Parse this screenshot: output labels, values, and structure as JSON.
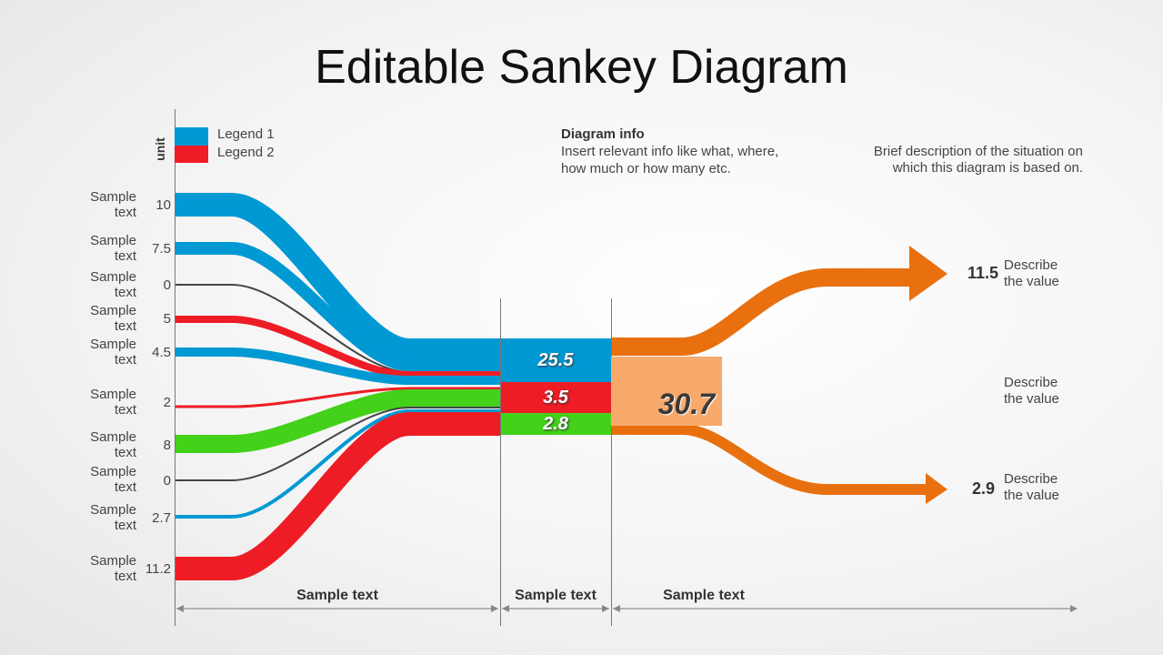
{
  "title": "Editable Sankey Diagram",
  "unit_label": "unit",
  "legend": [
    {
      "label": "Legend 1",
      "color": "#0099d4"
    },
    {
      "label": "Legend 2",
      "color": "#ee1c25"
    }
  ],
  "diagram_info": {
    "heading": "Diagram info",
    "line1": "Insert relevant  info like what,  where,",
    "line2": "how much or how many etc."
  },
  "description": {
    "line1": "Brief description of the situation on",
    "line2": "which this diagram is based on."
  },
  "colors": {
    "blue": "#0099d4",
    "red": "#ee1c25",
    "green": "#44d11a",
    "gray": "#444444",
    "orange": "#e8700e",
    "peach": "#f8a96c"
  },
  "inputs": [
    {
      "label": "Sample text",
      "value": "10",
      "color": "blue"
    },
    {
      "label": "Sample text",
      "value": "7.5",
      "color": "blue"
    },
    {
      "label": "Sample text",
      "value": "0",
      "color": "gray"
    },
    {
      "label": "Sample text",
      "value": "5",
      "color": "red"
    },
    {
      "label": "Sample text",
      "value": "4.5",
      "color": "blue"
    },
    {
      "label": "Sample text",
      "value": "2",
      "color": "red"
    },
    {
      "label": "Sample text",
      "value": "8",
      "color": "green"
    },
    {
      "label": "Sample text",
      "value": "0",
      "color": "gray"
    },
    {
      "label": "Sample text",
      "value": "2.7",
      "color": "blue"
    },
    {
      "label": "Sample text",
      "value": "11.2",
      "color": "red"
    }
  ],
  "middle": [
    {
      "value": "25.5",
      "color": "blue"
    },
    {
      "value": "3.5",
      "color": "red"
    },
    {
      "value": "2.8",
      "color": "green"
    }
  ],
  "total": "30.7",
  "outputs": [
    {
      "value": "11.5",
      "desc1": "Describe",
      "desc2": "the value"
    },
    {
      "value": "",
      "desc1": "Describe",
      "desc2": "the value"
    },
    {
      "value": "2.9",
      "desc1": "Describe",
      "desc2": "the value"
    }
  ],
  "sections": [
    "Sample text",
    "Sample text",
    "Sample text"
  ]
}
